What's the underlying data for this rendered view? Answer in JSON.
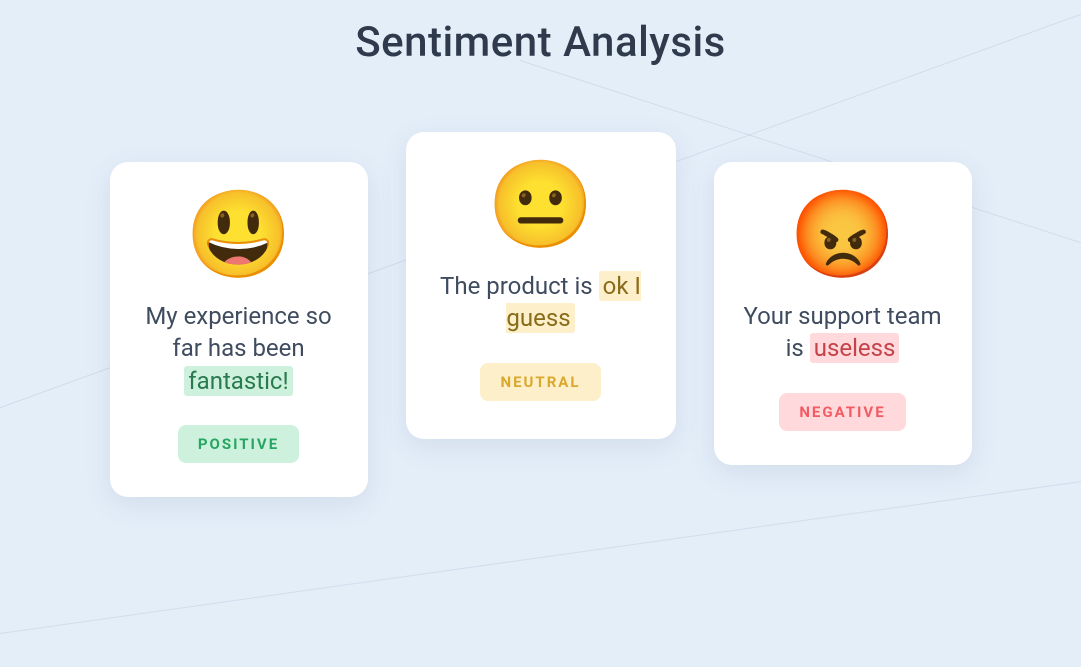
{
  "title": "Sentiment Analysis",
  "background_color": "#e4eef9",
  "card_background": "#ffffff",
  "card_shadow": "0 8px 28px rgba(60,80,120,0.10)",
  "title_color": "#2f3b4c",
  "text_color": "#3f4c60",
  "cards": [
    {
      "type": "positive",
      "emoji": "😃",
      "text_before": "My experience so far has been ",
      "highlight": "fantastic!",
      "text_after": "",
      "badge": "POSITIVE",
      "highlight_bg": "#cdf1dc",
      "highlight_color": "#2a7a4f",
      "badge_bg": "#cdf1dc",
      "badge_color": "#27a562"
    },
    {
      "type": "neutral",
      "emoji": "😐",
      "text_before": "The product is ",
      "highlight": "ok I guess",
      "text_after": "",
      "badge": "NEUTRAL",
      "highlight_bg": "#fcefca",
      "highlight_color": "#8a6b1a",
      "badge_bg": "#fcefca",
      "badge_color": "#d9a82d"
    },
    {
      "type": "negative",
      "emoji": "😡",
      "text_before": "Your support team is ",
      "highlight": "useless",
      "text_after": "",
      "badge": "NEGATIVE",
      "highlight_bg": "#ffd9db",
      "highlight_color": "#c4434a",
      "badge_bg": "#ffd9db",
      "badge_color": "#f15b63"
    }
  ]
}
